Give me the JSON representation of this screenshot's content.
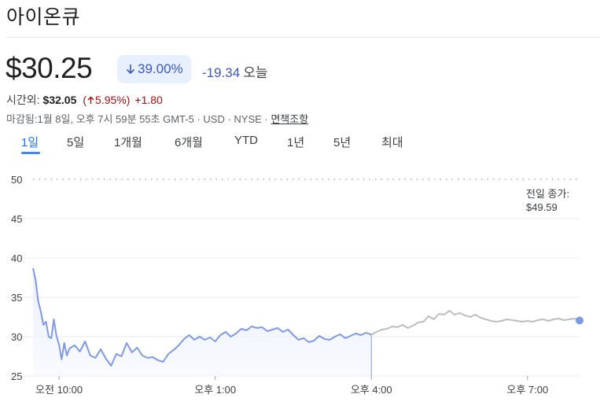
{
  "header": {
    "title": "아이온큐"
  },
  "quote": {
    "price": "$30.25",
    "change_pct": "39.00%",
    "change_abs": "-19.34",
    "period_label": "오늘"
  },
  "after_hours": {
    "label": "시간외:",
    "price": "$32.05",
    "pct": "5.95%",
    "abs": "+1.80"
  },
  "info": {
    "close_text": "마감됨:1월 8일, 오후 7시 59분 55초 GMT-5 · USD · NYSE · ",
    "disclaimer": "면책조항"
  },
  "tabs": [
    {
      "label": "1일",
      "active": true
    },
    {
      "label": "5일"
    },
    {
      "label": "1개월"
    },
    {
      "label": "6개월"
    },
    {
      "label": "YTD"
    },
    {
      "label": "1년"
    },
    {
      "label": "5년"
    },
    {
      "label": "최대"
    }
  ],
  "colors": {
    "accent": "#1a73e8",
    "negative": "#3c57c6",
    "positive_ah": "#a50e0e",
    "regular_line": "#7e9ae6",
    "extended_line": "#bdbdbd"
  },
  "chart_data": {
    "type": "line",
    "y_ticks": [
      "25",
      "30",
      "35",
      "40",
      "45",
      "50"
    ],
    "ylim": [
      25,
      50
    ],
    "x_ticks": [
      "오전 10:00",
      "오후 1:00",
      "오후 4:00",
      "오후 7:00"
    ],
    "x_tick_hours": [
      10,
      13,
      16,
      19
    ],
    "xlim_hours": [
      9.5,
      20.0
    ],
    "prev_close_label": "전일 종가:",
    "prev_close_value": "$49.59",
    "prev_close": 49.59,
    "series": [
      {
        "segment": "regular",
        "x": [
          9.5,
          9.55,
          9.6,
          9.65,
          9.7,
          9.75,
          9.8,
          9.85,
          9.9,
          9.95,
          10.0,
          10.05,
          10.1,
          10.15,
          10.2,
          10.3,
          10.4,
          10.5,
          10.6,
          10.7,
          10.8,
          10.9,
          11.0,
          11.1,
          11.2,
          11.3,
          11.4,
          11.5,
          11.6,
          11.7,
          11.8,
          11.9,
          12.0,
          12.1,
          12.2,
          12.3,
          12.4,
          12.5,
          12.6,
          12.7,
          12.8,
          12.9,
          13.0,
          13.1,
          13.2,
          13.3,
          13.4,
          13.5,
          13.6,
          13.7,
          13.8,
          13.9,
          14.0,
          14.1,
          14.2,
          14.3,
          14.4,
          14.5,
          14.6,
          14.7,
          14.8,
          14.9,
          15.0,
          15.1,
          15.2,
          15.3,
          15.4,
          15.5,
          15.6,
          15.7,
          15.8,
          15.9,
          16.0
        ],
        "y": [
          38.7,
          37.2,
          34.5,
          33.2,
          31.5,
          31.9,
          30.0,
          29.8,
          32.2,
          30.1,
          29.0,
          27.1,
          29.2,
          27.6,
          28.5,
          28.9,
          28.1,
          29.4,
          27.6,
          27.3,
          28.4,
          27.2,
          26.3,
          27.8,
          27.5,
          29.2,
          28.0,
          28.6,
          27.6,
          27.3,
          27.4,
          27.0,
          26.8,
          27.8,
          28.3,
          28.9,
          29.7,
          30.2,
          29.6,
          30.0,
          29.6,
          29.9,
          29.4,
          30.2,
          30.6,
          30.0,
          30.4,
          31.0,
          30.8,
          31.3,
          31.1,
          31.2,
          30.7,
          30.9,
          31.1,
          30.6,
          30.9,
          30.2,
          29.6,
          29.8,
          29.3,
          29.5,
          30.1,
          29.7,
          29.6,
          30.0,
          30.3,
          29.8,
          30.1,
          30.4,
          30.2,
          30.5,
          30.25
        ]
      },
      {
        "segment": "extended",
        "x": [
          16.0,
          16.1,
          16.2,
          16.3,
          16.4,
          16.5,
          16.6,
          16.7,
          16.8,
          16.9,
          17.0,
          17.1,
          17.2,
          17.3,
          17.4,
          17.5,
          17.6,
          17.7,
          17.8,
          17.9,
          18.0,
          18.1,
          18.2,
          18.3,
          18.4,
          18.5,
          18.6,
          18.7,
          18.8,
          18.9,
          19.0,
          19.1,
          19.2,
          19.3,
          19.4,
          19.5,
          19.6,
          19.7,
          19.8,
          19.9,
          20.0
        ],
        "y": [
          30.25,
          30.6,
          30.9,
          31.0,
          31.3,
          31.2,
          31.5,
          31.1,
          31.4,
          31.8,
          31.9,
          32.6,
          32.2,
          32.9,
          32.8,
          33.3,
          32.8,
          33.0,
          32.7,
          32.5,
          32.8,
          32.4,
          32.2,
          32.0,
          31.9,
          32.0,
          32.2,
          32.1,
          32.0,
          31.9,
          32.0,
          31.9,
          32.1,
          32.2,
          32.0,
          32.2,
          32.3,
          32.1,
          32.2,
          32.3,
          32.05
        ]
      }
    ]
  }
}
